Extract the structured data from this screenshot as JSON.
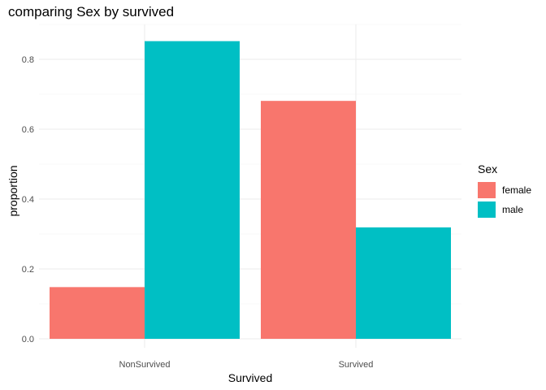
{
  "chart_data": {
    "type": "bar",
    "title": "comparing Sex by survived",
    "xlabel": "Survived",
    "ylabel": "proportion",
    "categories": [
      "NonSurvived",
      "Survived"
    ],
    "series": [
      {
        "name": "female",
        "color": "#F8766D",
        "values": [
          0.148,
          0.681
        ]
      },
      {
        "name": "male",
        "color": "#00BFC4",
        "values": [
          0.852,
          0.319
        ]
      }
    ],
    "ylim": [
      0,
      0.88
    ],
    "yticks": [
      0.0,
      0.2,
      0.4,
      0.6,
      0.8
    ],
    "ytick_labels": [
      "0.0",
      "0.2",
      "0.4",
      "0.6",
      "0.8"
    ],
    "legend": {
      "title": "Sex",
      "position": "right"
    },
    "grid": true
  }
}
